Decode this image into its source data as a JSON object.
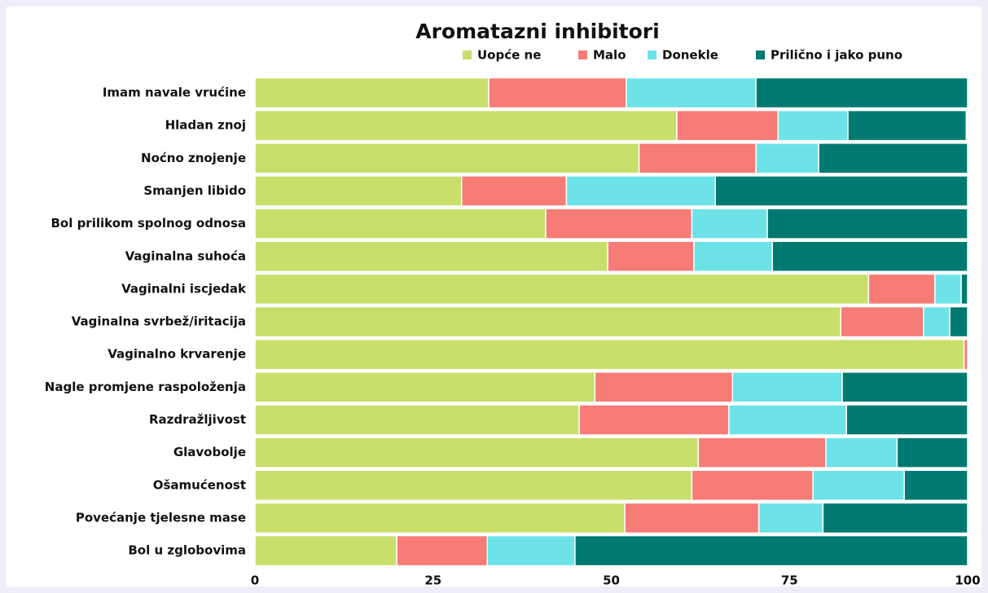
{
  "chart_data": {
    "type": "stacked-bar-horizontal",
    "title": "Aromatazni inhibitori",
    "categories": [
      "Imam navale vrućine",
      "Hladan znoj",
      "Noćno znojenje",
      "Smanjen libido",
      "Bol prilikom spolnog odnosa",
      "Vaginalna suhoća",
      "Vaginalni iscjedak",
      "Vaginalna svrbež/iritacija",
      "Vaginalno krvarenje",
      "Nagle promjene raspoloženja",
      "Razdražljivost",
      "Glavobolje",
      "Ošamućenost",
      "Povećanje tjelesne mase",
      "Bol u zglobovima"
    ],
    "series": [
      {
        "name": "Uopće ne",
        "color": "#c9df6b",
        "values": [
          32.8,
          59.2,
          53.9,
          29.0,
          40.8,
          49.5,
          86.1,
          82.2,
          99.5,
          47.7,
          45.5,
          62.2,
          61.3,
          51.9,
          19.9
        ]
      },
      {
        "name": "Malo",
        "color": "#f77b77",
        "values": [
          19.3,
          14.2,
          16.4,
          14.7,
          20.5,
          12.1,
          9.3,
          11.6,
          0.5,
          19.3,
          21.0,
          17.9,
          17.0,
          18.8,
          12.7
        ]
      },
      {
        "name": "Donekle",
        "color": "#6de3e8",
        "values": [
          18.2,
          9.8,
          8.8,
          20.9,
          10.6,
          11.0,
          3.7,
          3.7,
          0,
          15.4,
          16.5,
          10.0,
          12.8,
          9.0,
          12.3
        ]
      },
      {
        "name": "Prilično i jako puno",
        "color": "#007a70",
        "values": [
          29.7,
          16.6,
          20.9,
          35.4,
          28.1,
          27.4,
          0.9,
          2.5,
          0,
          17.6,
          17.0,
          9.9,
          8.9,
          20.3,
          55.1
        ]
      }
    ],
    "xlim": [
      0,
      100
    ],
    "xticks": [
      0,
      25,
      50,
      75,
      100
    ],
    "legend": "top"
  }
}
